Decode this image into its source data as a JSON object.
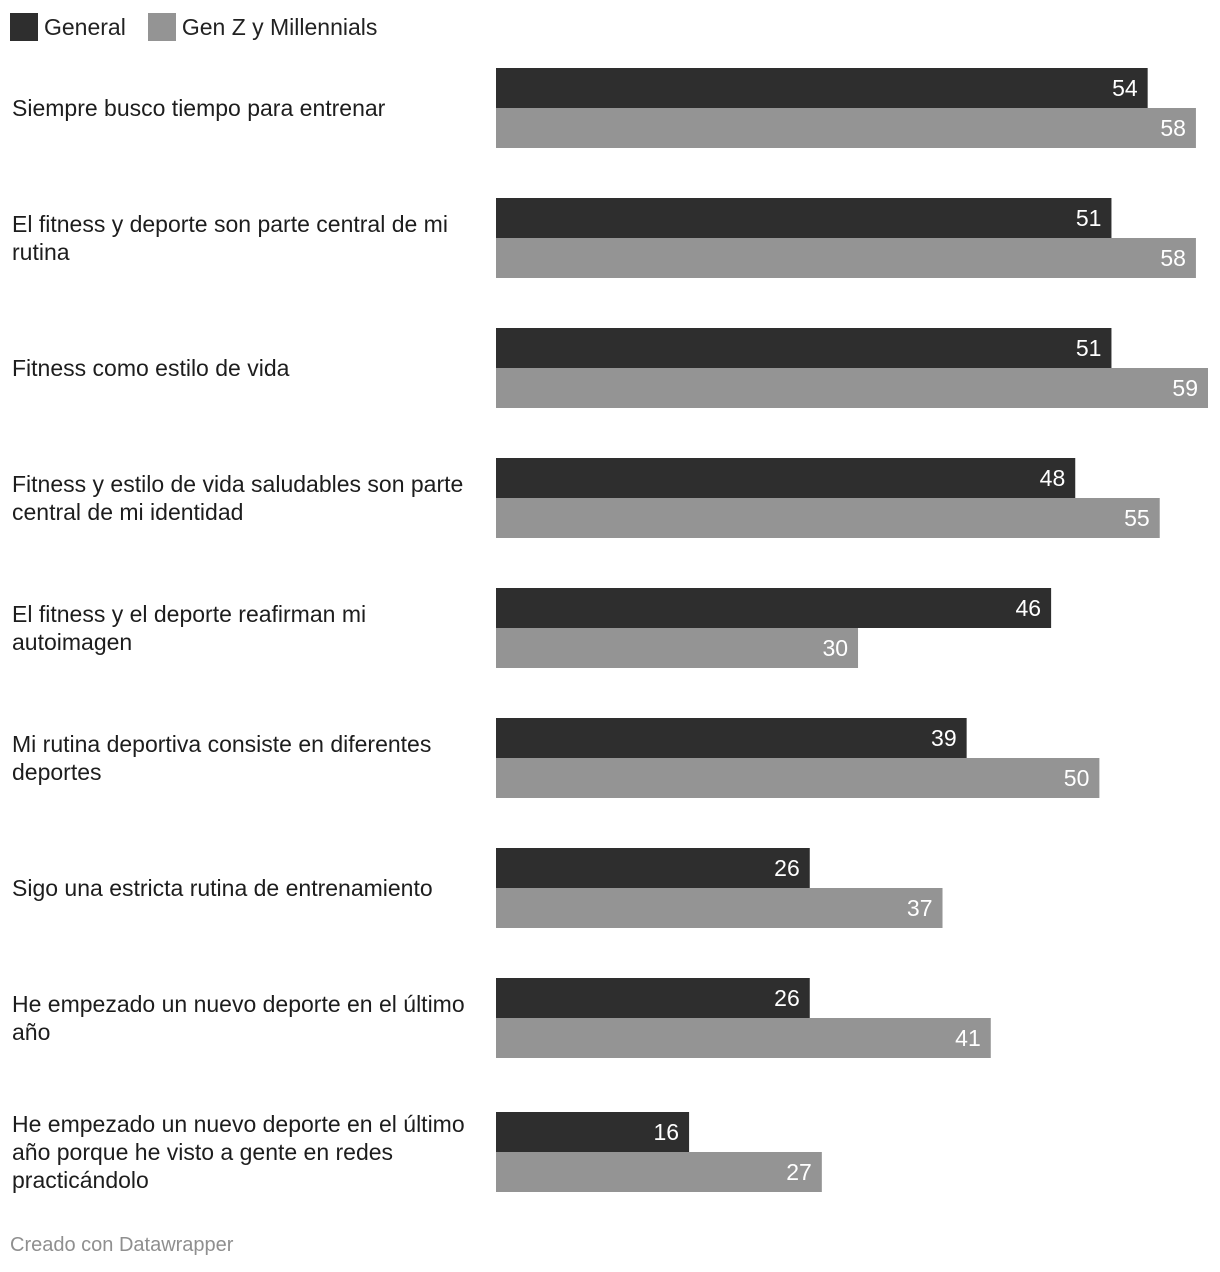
{
  "chart_data": {
    "type": "bar",
    "orientation": "horizontal",
    "grouped": true,
    "categories": [
      "Siempre busco tiempo para entrenar",
      "El fitness y deporte son parte central de mi rutina",
      "Fitness como estilo de vida",
      "Fitness y estilo de vida saludables son parte central de mi identidad",
      "El fitness y el deporte reafirman mi autoimagen",
      "Mi rutina deportiva consiste en diferentes deportes",
      "Sigo una estricta rutina de entrenamiento",
      "He empezado un nuevo deporte en el último año",
      "He empezado un nuevo deporte en el último año porque he visto a gente en redes practicándolo"
    ],
    "category_lines": [
      [
        "Siempre busco tiempo para entrenar"
      ],
      [
        "El fitness y deporte son parte central de mi",
        "rutina"
      ],
      [
        "Fitness como estilo de vida"
      ],
      [
        "Fitness y estilo de vida saludables son parte",
        "central de mi identidad"
      ],
      [
        "El fitness y el deporte reafirman mi",
        "autoimagen"
      ],
      [
        "Mi rutina deportiva consiste en diferentes",
        "deportes"
      ],
      [
        "Sigo una estricta rutina de entrenamiento"
      ],
      [
        "He empezado un nuevo deporte en el último",
        "año"
      ],
      [
        "He empezado un nuevo deporte en el último",
        "año porque he visto a gente en redes",
        "practicándolo"
      ]
    ],
    "series": [
      {
        "name": "General",
        "color": "#2e2e2e",
        "values": [
          54,
          51,
          51,
          48,
          46,
          39,
          26,
          26,
          16
        ]
      },
      {
        "name": "Gen Z y Millennials",
        "color": "#949494",
        "values": [
          58,
          58,
          59,
          55,
          30,
          50,
          37,
          41,
          27
        ]
      }
    ],
    "xlim": [
      0,
      59
    ],
    "legend_position": "top-left",
    "grid": false
  },
  "footer": {
    "credit": "Creado con Datawrapper"
  }
}
